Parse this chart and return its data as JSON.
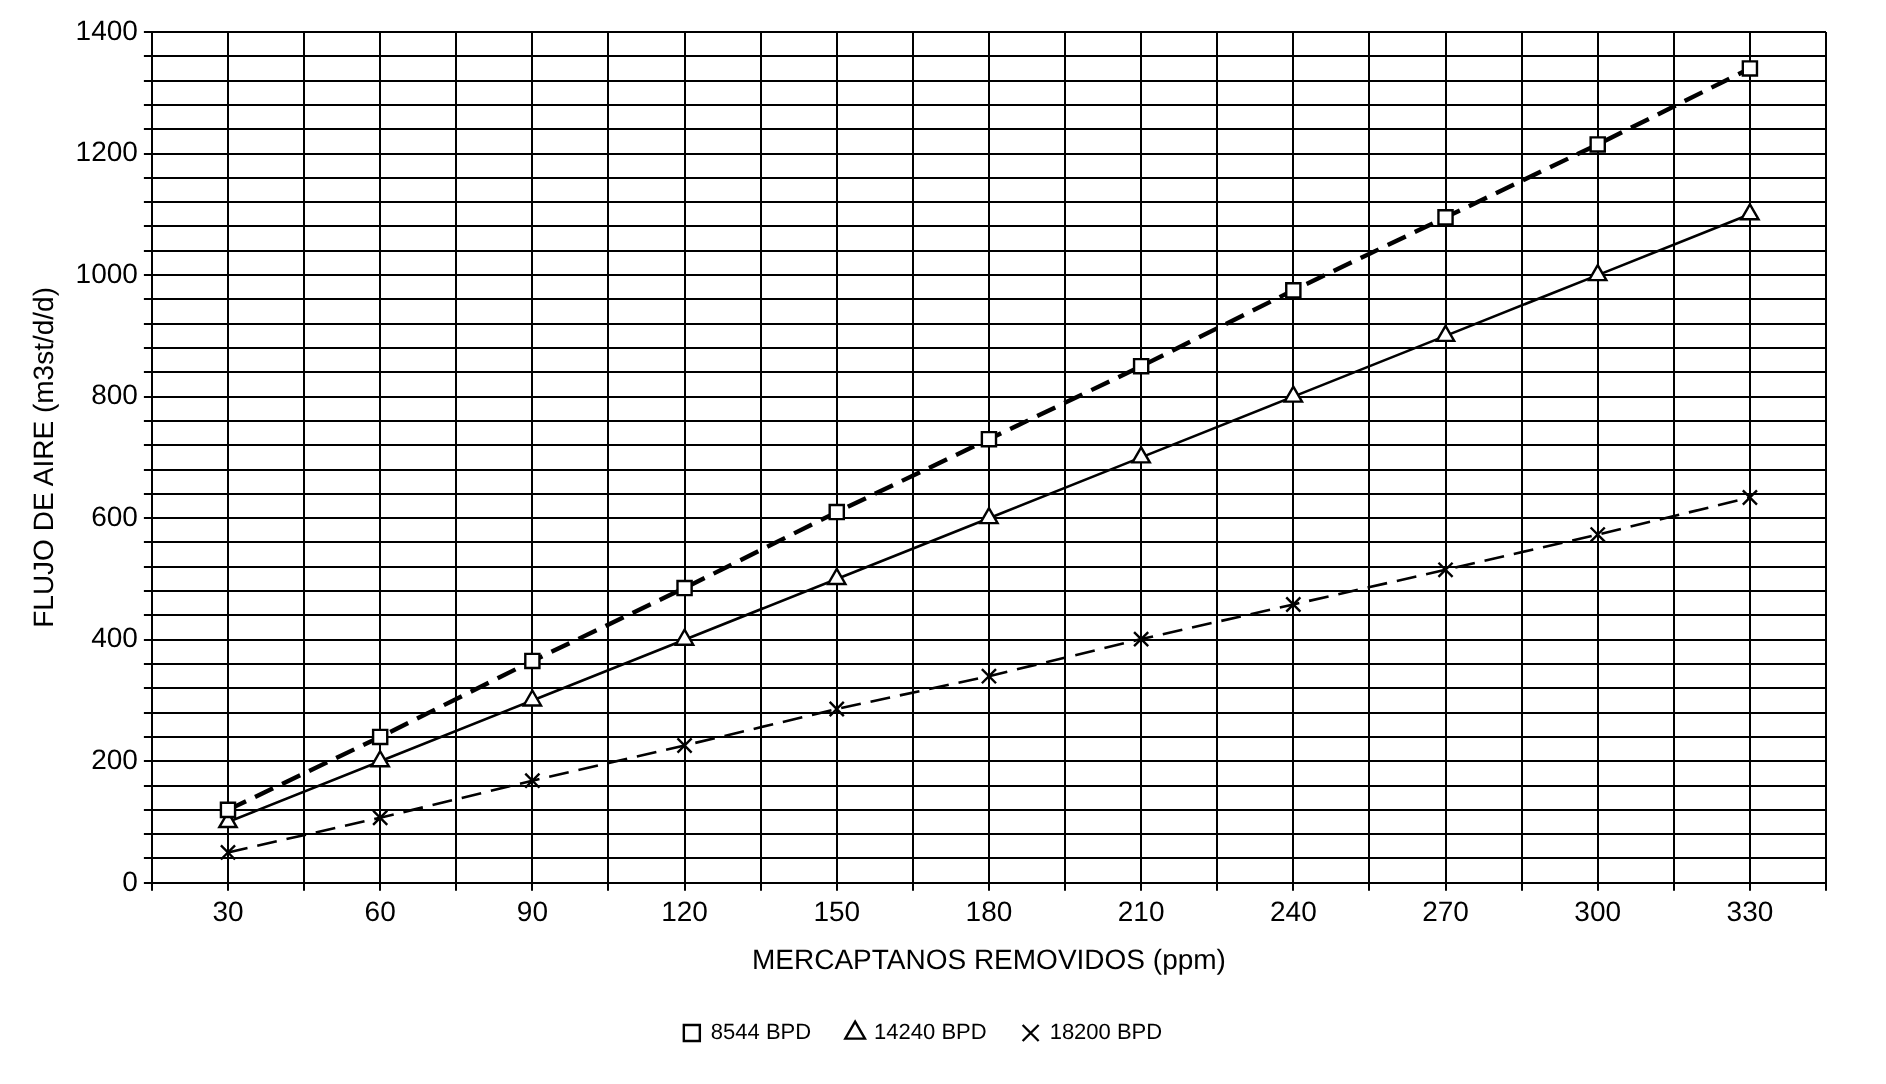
{
  "chart_data": {
    "type": "line",
    "xlabel": "MERCAPTANOS REMOVIDOS (ppm)",
    "ylabel": "FLUJO DE AIRE (m3st/d/d)",
    "x": [
      30,
      60,
      90,
      120,
      150,
      180,
      210,
      240,
      270,
      300,
      330
    ],
    "xlim": [
      15,
      345
    ],
    "xticks": [
      {
        "value": 15,
        "label": null
      },
      30,
      {
        "value": 45,
        "label": null
      },
      60,
      {
        "value": 75,
        "label": null
      },
      90,
      {
        "value": 105,
        "label": null
      },
      120,
      {
        "value": 135,
        "label": null
      },
      150,
      {
        "value": 165,
        "label": null
      },
      180,
      {
        "value": 195,
        "label": null
      },
      210,
      {
        "value": 225,
        "label": null
      },
      240,
      {
        "value": 255,
        "label": null
      },
      270,
      {
        "value": 285,
        "label": null
      },
      300,
      {
        "value": 315,
        "label": null
      },
      330,
      {
        "value": 345,
        "label": null
      }
    ],
    "ylim": [
      0,
      1400
    ],
    "yticks": [
      0,
      {
        "value": 40,
        "label": null
      },
      {
        "value": 80,
        "label": null
      },
      {
        "value": 120,
        "label": null
      },
      {
        "value": 160,
        "label": null
      },
      200,
      {
        "value": 240,
        "label": null
      },
      {
        "value": 280,
        "label": null
      },
      {
        "value": 320,
        "label": null
      },
      {
        "value": 360,
        "label": null
      },
      400,
      {
        "value": 440,
        "label": null
      },
      {
        "value": 480,
        "label": null
      },
      {
        "value": 520,
        "label": null
      },
      {
        "value": 560,
        "label": null
      },
      600,
      {
        "value": 640,
        "label": null
      },
      {
        "value": 680,
        "label": null
      },
      {
        "value": 720,
        "label": null
      },
      {
        "value": 760,
        "label": null
      },
      800,
      {
        "value": 840,
        "label": null
      },
      {
        "value": 880,
        "label": null
      },
      {
        "value": 920,
        "label": null
      },
      {
        "value": 960,
        "label": null
      },
      1000,
      {
        "value": 1040,
        "label": null
      },
      {
        "value": 1080,
        "label": null
      },
      {
        "value": 1120,
        "label": null
      },
      {
        "value": 1160,
        "label": null
      },
      1200,
      {
        "value": 1240,
        "label": null
      },
      {
        "value": 1280,
        "label": null
      },
      {
        "value": 1320,
        "label": null
      },
      {
        "value": 1360,
        "label": null
      },
      1400
    ],
    "grid": true,
    "legend": "bottom",
    "series": [
      {
        "name": "8544 BPD",
        "color": "#000000",
        "marker": "square",
        "line_style": "dashed",
        "values": [
          120,
          240,
          365,
          485,
          610,
          730,
          850,
          975,
          1095,
          1215,
          1340
        ]
      },
      {
        "name": "14240 BPD",
        "color": "#000000",
        "marker": "triangle",
        "line_style": "solid",
        "values": [
          100,
          200,
          300,
          400,
          500,
          600,
          700,
          800,
          900,
          1000,
          1100
        ]
      },
      {
        "name": "18200 BPD",
        "color": "#000000",
        "marker": "cross",
        "line_style": "dashed",
        "values": [
          50,
          107,
          168,
          226,
          286,
          340,
          401,
          458,
          515,
          573,
          634
        ]
      }
    ]
  }
}
